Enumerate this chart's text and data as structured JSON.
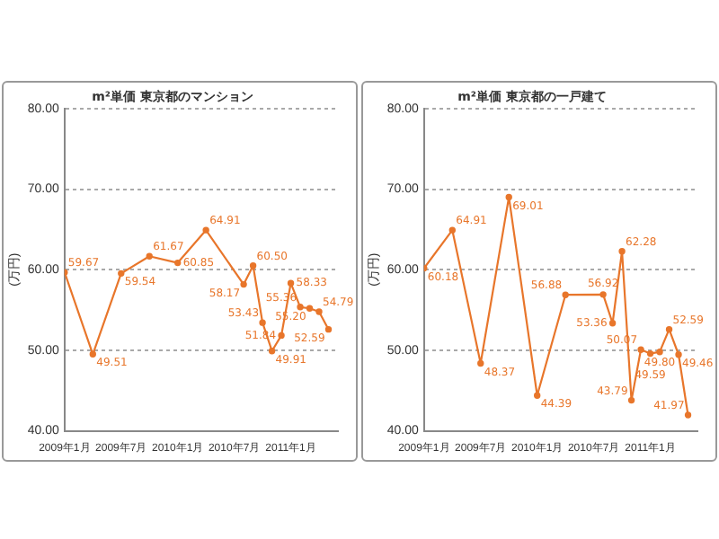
{
  "chart_data": [
    {
      "type": "line",
      "title": "m²単価 東京都のマンション",
      "ylabel": "(万円)",
      "x": [
        "2009-01",
        "2009-04",
        "2009-07",
        "2009-10",
        "2010-01",
        "2010-04",
        "2010-08",
        "2010-09",
        "2010-10",
        "2010-11",
        "2010-12",
        "2011-01",
        "2011-02",
        "2011-03",
        "2011-04",
        "2011-05"
      ],
      "series": [
        {
          "color": "#e8762b",
          "values": [
            59.67,
            49.51,
            59.54,
            61.67,
            60.85,
            64.91,
            58.17,
            60.5,
            53.43,
            49.91,
            51.84,
            58.33,
            55.36,
            55.2,
            54.79,
            52.59
          ],
          "value_labels": [
            "59.67",
            "49.51",
            "59.54",
            "61.67",
            "60.85",
            "64.91",
            "58.17",
            "60.50",
            "53.43",
            "49.91",
            "51.84",
            "58.33",
            "55.36",
            "55.20",
            "54.79",
            "52.59"
          ]
        }
      ],
      "xlim": [
        "2009-01",
        "2011-06"
      ],
      "xticks": [
        {
          "value": "2009-01",
          "label": "2009年1月"
        },
        {
          "value": "2009-07",
          "label": "2009年7月"
        },
        {
          "value": "2010-01",
          "label": "2010年1月"
        },
        {
          "value": "2010-07",
          "label": "2010年7月"
        },
        {
          "value": "2011-01",
          "label": "2011年1月"
        }
      ],
      "ylim": [
        40,
        80
      ],
      "yticks": [
        {
          "value": 40,
          "label": "40.00"
        },
        {
          "value": 50,
          "label": "50.00"
        },
        {
          "value": 60,
          "label": "60.00"
        },
        {
          "value": 70,
          "label": "70.00"
        },
        {
          "value": 80,
          "label": "80.00"
        }
      ],
      "grid": "y",
      "legend": false,
      "marker": "circle",
      "line_style": "solid"
    },
    {
      "type": "line",
      "title": "m²単価 東京都の一戸建て",
      "ylabel": "(万円)",
      "x": [
        "2009-01",
        "2009-04",
        "2009-07",
        "2009-10",
        "2010-01",
        "2010-04",
        "2010-08",
        "2010-09",
        "2010-10",
        "2010-11",
        "2010-12",
        "2011-01",
        "2011-02",
        "2011-03",
        "2011-04",
        "2011-05"
      ],
      "series": [
        {
          "color": "#e8762b",
          "values": [
            60.18,
            64.91,
            48.37,
            69.01,
            44.39,
            56.88,
            56.92,
            53.36,
            62.28,
            43.79,
            50.07,
            49.59,
            49.8,
            52.59,
            49.46,
            41.97
          ],
          "value_labels": [
            "60.18",
            "64.91",
            "48.37",
            "69.01",
            "44.39",
            "56.88",
            "56.92",
            "53.36",
            "62.28",
            "43.79",
            "50.07",
            "49.59",
            "49.80",
            "52.59",
            "49.46",
            "41.97"
          ]
        }
      ],
      "xlim": [
        "2009-01",
        "2011-06"
      ],
      "xticks": [
        {
          "value": "2009-01",
          "label": "2009年1月"
        },
        {
          "value": "2009-07",
          "label": "2009年7月"
        },
        {
          "value": "2010-01",
          "label": "2010年1月"
        },
        {
          "value": "2010-07",
          "label": "2010年7月"
        },
        {
          "value": "2011-01",
          "label": "2011年1月"
        }
      ],
      "ylim": [
        40,
        80
      ],
      "yticks": [
        {
          "value": 40,
          "label": "40.00"
        },
        {
          "value": 50,
          "label": "50.00"
        },
        {
          "value": 60,
          "label": "60.00"
        },
        {
          "value": 70,
          "label": "70.00"
        },
        {
          "value": 80,
          "label": "80.00"
        }
      ],
      "grid": "y",
      "legend": false,
      "marker": "circle",
      "line_style": "solid"
    }
  ]
}
